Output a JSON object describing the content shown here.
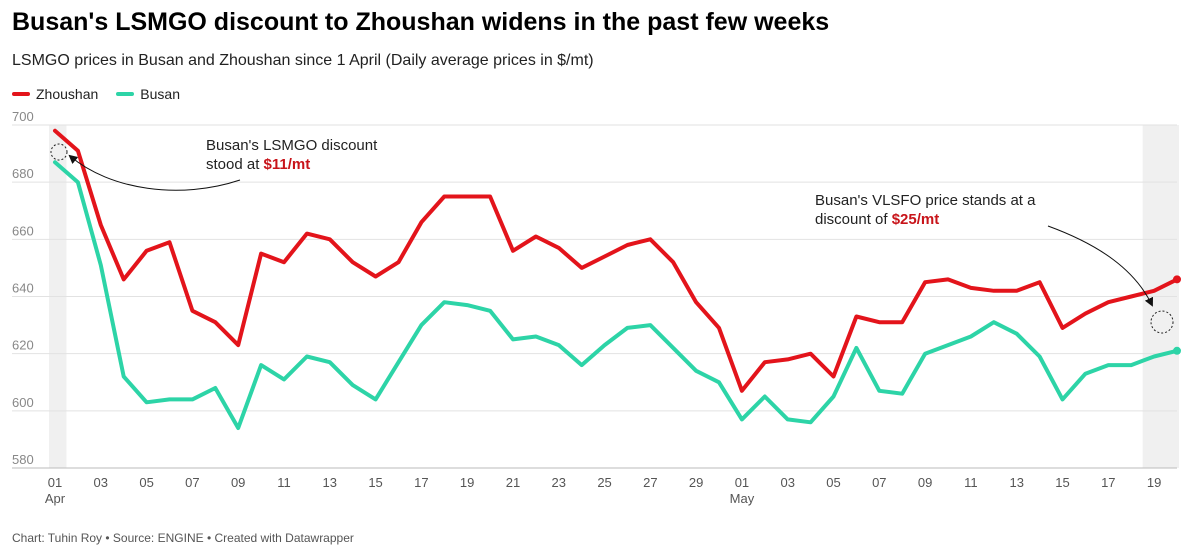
{
  "title": "Busan's LSMGO discount to Zhoushan widens in the past few weeks",
  "subtitle": "LSMGO prices in Busan and Zhoushan since 1 April (Daily average prices in $/mt)",
  "footer": "Chart: Tuhin Roy • Source: ENGINE • Created with Datawrapper",
  "colors": {
    "zhoushan": "#e3141b",
    "busan": "#2dd4a7",
    "grid": "#e2e2e2",
    "highlight": "#f0f0f0"
  },
  "chart_data": {
    "type": "line",
    "x": [
      "Apr 01",
      "Apr 02",
      "Apr 03",
      "Apr 04",
      "Apr 05",
      "Apr 06",
      "Apr 07",
      "Apr 08",
      "Apr 09",
      "Apr 10",
      "Apr 11",
      "Apr 12",
      "Apr 13",
      "Apr 14",
      "Apr 15",
      "Apr 16",
      "Apr 17",
      "Apr 18",
      "Apr 19",
      "Apr 20",
      "Apr 21",
      "Apr 22",
      "Apr 23",
      "Apr 24",
      "Apr 25",
      "Apr 26",
      "Apr 27",
      "Apr 28",
      "Apr 29",
      "Apr 30",
      "May 01",
      "May 02",
      "May 03",
      "May 04",
      "May 05",
      "May 06",
      "May 07",
      "May 08",
      "May 09",
      "May 10",
      "May 11",
      "May 12",
      "May 13",
      "May 14",
      "May 15",
      "May 16",
      "May 17",
      "May 18",
      "May 19",
      "May 20"
    ],
    "series": [
      {
        "name": "Zhoushan",
        "values": [
          698,
          691,
          665,
          646,
          656,
          659,
          635,
          631,
          623,
          655,
          652,
          662,
          660,
          652,
          647,
          652,
          666,
          675,
          675,
          675,
          656,
          661,
          657,
          650,
          654,
          658,
          660,
          652,
          638,
          629,
          607,
          617,
          618,
          620,
          612,
          633,
          631,
          631,
          645,
          646,
          643,
          642,
          642,
          645,
          629,
          634,
          638,
          640,
          642,
          646
        ]
      },
      {
        "name": "Busan",
        "values": [
          687,
          680,
          651,
          612,
          603,
          604,
          604,
          608,
          594,
          616,
          611,
          619,
          617,
          609,
          604,
          617,
          630,
          638,
          637,
          635,
          625,
          626,
          623,
          616,
          623,
          629,
          630,
          622,
          614,
          610,
          597,
          605,
          597,
          596,
          605,
          622,
          607,
          606,
          620,
          623,
          626,
          631,
          627,
          619,
          604,
          613,
          616,
          616,
          619,
          621
        ]
      }
    ],
    "x_tick_labels": [
      "01",
      "03",
      "05",
      "07",
      "09",
      "11",
      "13",
      "15",
      "17",
      "19",
      "21",
      "23",
      "25",
      "27",
      "29",
      "01",
      "03",
      "05",
      "07",
      "09",
      "11",
      "13",
      "15",
      "17",
      "19"
    ],
    "month_labels": [
      "Apr",
      "May"
    ],
    "y_ticks": [
      580,
      600,
      620,
      640,
      660,
      680,
      700
    ],
    "ylim": [
      580,
      700
    ],
    "legend_position": "top-left",
    "grid": true,
    "highlighted_days": [
      "Apr 01",
      "May 19",
      "May 20"
    ],
    "annotations": [
      {
        "text_line1": "Busan's LSMGO discount",
        "text_line2_prefix": "stood at ",
        "text_line2_value": "$11/mt"
      },
      {
        "text_line1": "Busan's VLSFO price stands at a",
        "text_line2_prefix": "discount of ",
        "text_line2_value": "$25/mt"
      }
    ]
  }
}
